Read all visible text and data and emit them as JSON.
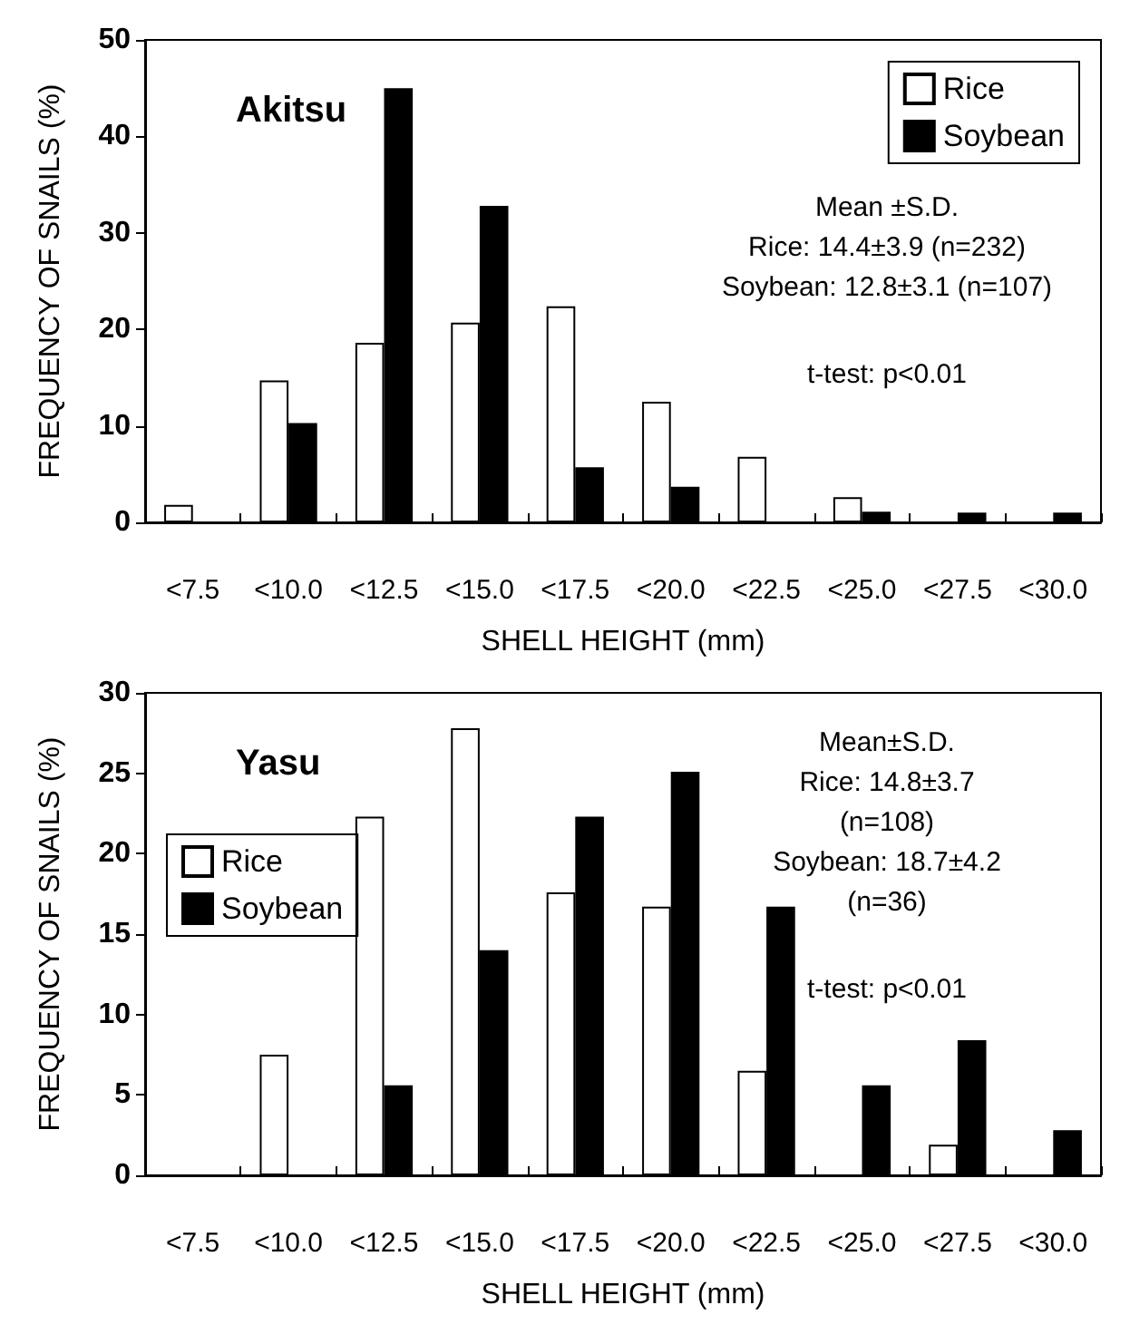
{
  "chart_data": [
    {
      "type": "bar",
      "title": "Akitsu",
      "xlabel": "SHELL HEIGHT (mm)",
      "ylabel": "FREQUENCY OF SNAILS (%)",
      "categories": [
        "<7.5",
        "<10.0",
        "<12.5",
        "<15.0",
        "<17.5",
        "<20.0",
        "<22.5",
        "<25.0",
        "<27.5",
        "<30.0"
      ],
      "series": [
        {
          "name": "Rice",
          "color": "#ffffff",
          "values": [
            1.8,
            14.7,
            18.6,
            20.7,
            22.4,
            12.5,
            6.8,
            2.6,
            0,
            0
          ]
        },
        {
          "name": "Soybean",
          "color": "#000000",
          "values": [
            0,
            10.3,
            45.0,
            32.8,
            5.7,
            3.7,
            0,
            1.1,
            1.0,
            1.0
          ]
        }
      ],
      "ylim": [
        0,
        50
      ],
      "yticks": [
        0,
        10,
        20,
        30,
        40,
        50
      ],
      "grid": false,
      "legend": "top right",
      "annotations": [
        "Mean ±S.D.",
        "Rice: 14.4±3.9 (n=232)",
        "Soybean: 12.8±3.1 (n=107)",
        "t-test: p<0.01"
      ]
    },
    {
      "type": "bar",
      "title": "Yasu",
      "xlabel": "SHELL HEIGHT (mm)",
      "ylabel": "FREQUENCY OF SNAILS (%)",
      "categories": [
        "<7.5",
        "<10.0",
        "<12.5",
        "<15.0",
        "<17.5",
        "<20.0",
        "<22.5",
        "<25.0",
        "<27.5",
        "<30.0"
      ],
      "series": [
        {
          "name": "Rice",
          "color": "#ffffff",
          "values": [
            0,
            7.5,
            22.3,
            27.8,
            17.6,
            16.7,
            6.5,
            0,
            1.9,
            0
          ]
        },
        {
          "name": "Soybean",
          "color": "#000000",
          "values": [
            0,
            0,
            5.6,
            14.0,
            22.3,
            25.1,
            16.7,
            5.6,
            8.4,
            2.8
          ]
        }
      ],
      "ylim": [
        0,
        30
      ],
      "yticks": [
        0,
        5,
        10,
        15,
        20,
        25,
        30
      ],
      "grid": false,
      "legend": "top left",
      "annotations": [
        "Mean±S.D.",
        "Rice: 14.8±3.7",
        "(n=108)",
        "Soybean: 18.7±4.2",
        "(n=36)",
        "t-test: p<0.01"
      ]
    }
  ]
}
